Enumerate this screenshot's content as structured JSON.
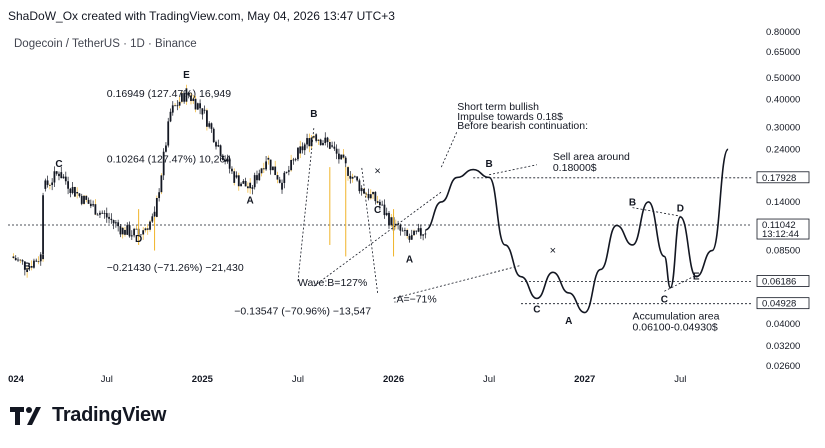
{
  "header": {
    "text": "ShaDoW_Ox created with TradingView.com, May 04, 2026 13:47 UTC+3"
  },
  "symbol": {
    "text": "Dogecoin / TetherUS · 1D · Binance"
  },
  "footer": {
    "brand": "TradingView",
    "logo_icon": "tradingview-logo-icon"
  },
  "chart_data": {
    "type": "line",
    "yscale": "log",
    "ylim": [
      0.02,
      0.8
    ],
    "y_ticks": [
      "0.80000",
      "0.65000",
      "0.50000",
      "0.40000",
      "0.30000",
      "0.24000",
      "0.18000",
      "0.14000",
      "0.11042",
      "0.08500",
      "0.06186",
      "0.04928",
      "0.04000",
      "0.03200",
      "0.02600"
    ],
    "x_ticks": [
      "024",
      "Jul",
      "2025",
      "Jul",
      "2026",
      "Jul",
      "2027",
      "Jul"
    ],
    "price_tags": [
      {
        "label": "0.17928",
        "value": 0.17928,
        "bg": "#ffffff",
        "fg": "#131722"
      },
      {
        "label": "0.11042",
        "value": 0.11042,
        "bg": "#ffffff",
        "fg": "#131722",
        "sub": "13:12:44"
      },
      {
        "label": "0.06186",
        "value": 0.06186,
        "bg": "#ffffff",
        "fg": "#131722"
      },
      {
        "label": "0.04928",
        "value": 0.04928,
        "bg": "#ffffff",
        "fg": "#131722"
      }
    ],
    "wave_labels": [
      {
        "text": "B",
        "x": "2024-02",
        "y": 0.07
      },
      {
        "text": "C",
        "x": "2024-04",
        "y": 0.2
      },
      {
        "text": "D",
        "x": "2024-09",
        "y": 0.093
      },
      {
        "text": "E",
        "x": "2024-12",
        "y": 0.5
      },
      {
        "text": "A",
        "x": "2025-04",
        "y": 0.138
      },
      {
        "text": "B",
        "x": "2025-08",
        "y": 0.335
      },
      {
        "text": "C",
        "x": "2025-12",
        "y": 0.125
      },
      {
        "text": "A",
        "x": "2026-02",
        "y": 0.075
      },
      {
        "text": "B",
        "x": "2026-07",
        "y": 0.2
      },
      {
        "text": "C",
        "x": "2026-10",
        "y": 0.045
      },
      {
        "text": "A",
        "x": "2026-12",
        "y": 0.04
      },
      {
        "text": "B",
        "x": "2027-04",
        "y": 0.135
      },
      {
        "text": "D",
        "x": "2027-07",
        "y": 0.127
      },
      {
        "text": "C",
        "x": "2027-06",
        "y": 0.05
      },
      {
        "text": "E",
        "x": "2027-08",
        "y": 0.063
      }
    ],
    "annotations": [
      {
        "text": "0.16949 (127.47%) 16,949",
        "x": "2024-07",
        "y": 0.41
      },
      {
        "text": "0.10264 (127.47%) 10,264",
        "x": "2024-07",
        "y": 0.21
      },
      {
        "text": "−0.21430 (−71.26%) −21,430",
        "x": "2024-07",
        "y": 0.069
      },
      {
        "text": "Wave:B=127%",
        "x": "2025-07",
        "y": 0.059
      },
      {
        "text": ":A=−71%",
        "x": "2026-01",
        "y": 0.05
      },
      {
        "text": "−0.13547 (−70.96%) −13,547",
        "x": "2025-03",
        "y": 0.044
      },
      {
        "text": "Short term bullish",
        "x": "2026-05",
        "y": 0.36
      },
      {
        "text": "Impulse towards 0.18$",
        "x": "2026-05",
        "y": 0.325
      },
      {
        "text": "Before bearish continuation:",
        "x": "2026-05",
        "y": 0.295
      },
      {
        "text": "Sell area around",
        "x": "2026-11",
        "y": 0.215
      },
      {
        "text": "0.18000$",
        "x": "2026-11",
        "y": 0.192
      },
      {
        "text": "Accumulation area",
        "x": "2027-04",
        "y": 0.042
      },
      {
        "text": "0.06100-0.04930$",
        "x": "2027-04",
        "y": 0.0375
      }
    ],
    "levels": [
      0.17928,
      0.11042,
      0.06186,
      0.04928
    ],
    "candles_color": {
      "up": "#131722",
      "down": "#131722",
      "wick_accent": "#f0b429"
    },
    "history_close": [
      [
        "2024-01",
        0.08
      ],
      [
        "2024-02",
        0.072
      ],
      [
        "2024-03",
        0.082
      ],
      [
        "2024-03",
        0.16
      ],
      [
        "2024-04",
        0.19
      ],
      [
        "2024-05",
        0.155
      ],
      [
        "2024-06",
        0.135
      ],
      [
        "2024-07",
        0.12
      ],
      [
        "2024-08",
        0.105
      ],
      [
        "2024-09",
        0.1
      ],
      [
        "2024-10",
        0.12
      ],
      [
        "2024-11",
        0.35
      ],
      [
        "2024-12",
        0.43
      ],
      [
        "2025-01",
        0.36
      ],
      [
        "2025-02",
        0.25
      ],
      [
        "2025-03",
        0.18
      ],
      [
        "2025-04",
        0.16
      ],
      [
        "2025-05",
        0.22
      ],
      [
        "2025-06",
        0.17
      ],
      [
        "2025-07",
        0.23
      ],
      [
        "2025-08",
        0.28
      ],
      [
        "2025-09",
        0.25
      ],
      [
        "2025-10",
        0.2
      ],
      [
        "2025-11",
        0.16
      ],
      [
        "2025-12",
        0.14
      ],
      [
        "2026-01",
        0.11
      ],
      [
        "2026-02",
        0.095
      ],
      [
        "2026-03",
        0.105
      ]
    ],
    "projection": [
      [
        "2026-03",
        0.105
      ],
      [
        "2026-04",
        0.14
      ],
      [
        "2026-05",
        0.18
      ],
      [
        "2026-06",
        0.195
      ],
      [
        "2026-07",
        0.18
      ],
      [
        "2026-08",
        0.09
      ],
      [
        "2026-09",
        0.065
      ],
      [
        "2026-10",
        0.052
      ],
      [
        "2026-11",
        0.068
      ],
      [
        "2026-12",
        0.055
      ],
      [
        "2027-01",
        0.045
      ],
      [
        "2027-02",
        0.07
      ],
      [
        "2027-03",
        0.11
      ],
      [
        "2027-04",
        0.09
      ],
      [
        "2027-05",
        0.14
      ],
      [
        "2027-06",
        0.08
      ],
      [
        "2027-06",
        0.058
      ],
      [
        "2027-07",
        0.12
      ],
      [
        "2027-08",
        0.065
      ],
      [
        "2027-09",
        0.085
      ],
      [
        "2027-10",
        0.24
      ]
    ]
  }
}
